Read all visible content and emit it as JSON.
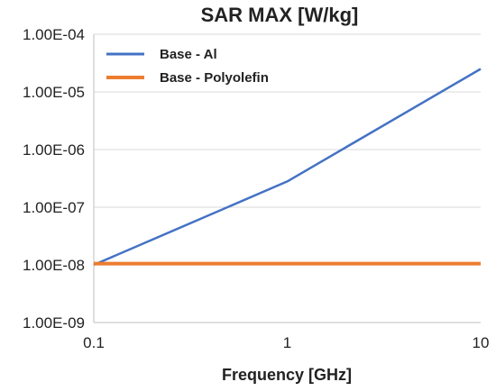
{
  "chart_data": {
    "type": "line",
    "title": "SAR MAX [W/kg]",
    "xlabel": "Frequency [GHz]",
    "ylabel": "",
    "x_scale": "log",
    "y_scale": "log",
    "xlim": [
      0.1,
      10
    ],
    "ylim": [
      1e-09,
      0.0001
    ],
    "x_ticks": [
      0.1,
      1,
      10
    ],
    "x_tick_labels": [
      "0.1",
      "1",
      "10"
    ],
    "y_ticks": [
      1e-09,
      1e-08,
      1e-07,
      1e-06,
      1e-05,
      0.0001
    ],
    "y_tick_labels": [
      "1.00E-09",
      "1.00E-08",
      "1.00E-07",
      "1.00E-06",
      "1.00E-05",
      "1.00E-04"
    ],
    "grid": true,
    "legend_position": "top-left",
    "series": [
      {
        "name": "Base - Al",
        "color": "#4472C4",
        "x": [
          0.1,
          1,
          10
        ],
        "y": [
          1e-08,
          2.8e-07,
          2.5e-05
        ]
      },
      {
        "name": "Base - Polyolefin",
        "color": "#ED7D31",
        "x": [
          0.1,
          1,
          10
        ],
        "y": [
          1.05e-08,
          1.05e-08,
          1.05e-08
        ]
      }
    ]
  }
}
